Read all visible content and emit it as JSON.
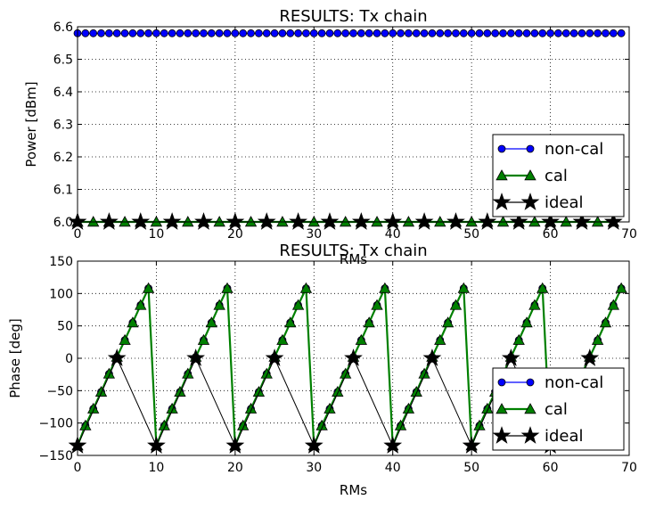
{
  "chart_data": [
    {
      "type": "line",
      "title": "RESULTS: Tx chain",
      "xlabel": "RMs",
      "ylabel": "Power [dBm]",
      "xlim": [
        0,
        70
      ],
      "ylim": [
        6.0,
        6.6
      ],
      "xticks": [
        "0",
        "10",
        "20",
        "30",
        "40",
        "50",
        "60",
        "70"
      ],
      "yticks": [
        "6.0",
        "6.1",
        "6.2",
        "6.3",
        "6.4",
        "6.5",
        "6.6"
      ],
      "grid": true,
      "legend": "lower-right",
      "x": {
        "start": 0,
        "end": 69,
        "step": 1
      },
      "series": [
        {
          "name": "non-cal",
          "marker": "circle",
          "color": "#0000ff",
          "x_step": 1,
          "constant": 6.58
        },
        {
          "name": "cal",
          "marker": "triangle",
          "color": "#008000",
          "x_step": 2,
          "constant": 6.0
        },
        {
          "name": "ideal",
          "marker": "star",
          "color": "#000000",
          "x_step": 4,
          "constant": 6.0
        }
      ]
    },
    {
      "type": "line",
      "title": "RESULTS: Tx chain",
      "xlabel": "RMs",
      "ylabel": "Phase [deg]",
      "xlim": [
        0,
        70
      ],
      "ylim": [
        -150,
        150
      ],
      "xticks": [
        "0",
        "10",
        "20",
        "30",
        "40",
        "50",
        "60",
        "70"
      ],
      "yticks": [
        "150",
        "100",
        "50",
        "0",
        "−50",
        "−100",
        "−150"
      ],
      "grid": true,
      "legend": "lower-right",
      "x": {
        "start": 0,
        "end": 69,
        "step": 1
      },
      "series": [
        {
          "name": "non-cal",
          "marker": "circle",
          "color": "#0000ff",
          "x_step": 1,
          "pattern_period": 10,
          "pattern": [
            -135,
            -104,
            -78,
            -52,
            -24,
            2,
            28,
            55,
            82,
            108
          ]
        },
        {
          "name": "cal",
          "marker": "triangle",
          "color": "#008000",
          "x_step": 1,
          "pattern_period": 10,
          "pattern": [
            -135,
            -104,
            -78,
            -52,
            -24,
            2,
            28,
            55,
            82,
            108
          ]
        },
        {
          "name": "ideal",
          "marker": "star",
          "color": "#000000",
          "x_step": 5,
          "pattern_period": 10,
          "pattern": [
            -135,
            0
          ]
        }
      ]
    }
  ]
}
